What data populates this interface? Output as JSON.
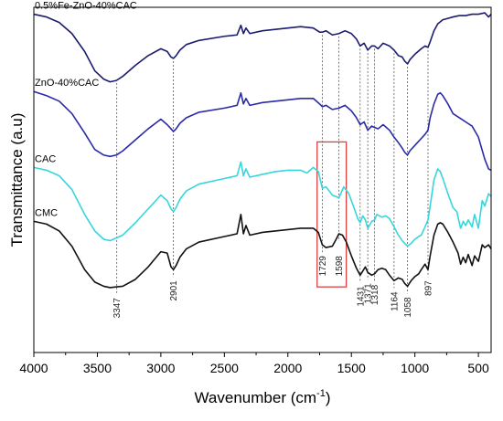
{
  "chart_data": {
    "type": "line",
    "xlabel": "Wavenumber (cm",
    "xlabel_sup": "-1",
    "xlabel_close": ")",
    "ylabel": "Transmittance (a.u)",
    "xlim": [
      4000,
      400
    ],
    "x_reversed": true,
    "y_scale": "arbitrary offset (a.u), 0 = bottom of frame, 100 = top",
    "ylim": [
      0,
      100
    ],
    "x_ticks": [
      4000,
      3500,
      3000,
      2500,
      2000,
      1500,
      1000,
      500
    ],
    "grid": false,
    "legend": "labels printed above each curve",
    "series": [
      {
        "name": "0.5%Fe-ZnO-40%CAC",
        "color": "#1c1c6e",
        "points": [
          [
            4000,
            98.0
          ],
          [
            3900,
            97.2
          ],
          [
            3800,
            95.6
          ],
          [
            3700,
            92.4
          ],
          [
            3600,
            87.2
          ],
          [
            3520,
            81.6
          ],
          [
            3450,
            79.2
          ],
          [
            3400,
            78.4
          ],
          [
            3350,
            78.8
          ],
          [
            3300,
            80.0
          ],
          [
            3200,
            83.2
          ],
          [
            3100,
            86.0
          ],
          [
            3000,
            88.0
          ],
          [
            2950,
            87.2
          ],
          [
            2920,
            85.6
          ],
          [
            2901,
            85.2
          ],
          [
            2880,
            86.0
          ],
          [
            2850,
            87.6
          ],
          [
            2800,
            89.2
          ],
          [
            2700,
            90.4
          ],
          [
            2500,
            91.6
          ],
          [
            2400,
            92.0
          ],
          [
            2370,
            94.8
          ],
          [
            2350,
            92.4
          ],
          [
            2330,
            94.0
          ],
          [
            2300,
            92.4
          ],
          [
            2200,
            93.2
          ],
          [
            2100,
            93.6
          ],
          [
            2000,
            94.0
          ],
          [
            1900,
            94.4
          ],
          [
            1800,
            94.0
          ],
          [
            1750,
            92.8
          ],
          [
            1729,
            92.8
          ],
          [
            1700,
            93.2
          ],
          [
            1650,
            92.0
          ],
          [
            1598,
            92.4
          ],
          [
            1550,
            93.2
          ],
          [
            1500,
            92.4
          ],
          [
            1460,
            90.8
          ],
          [
            1431,
            88.8
          ],
          [
            1400,
            89.6
          ],
          [
            1371,
            87.6
          ],
          [
            1340,
            88.8
          ],
          [
            1318,
            88.8
          ],
          [
            1290,
            88.0
          ],
          [
            1250,
            89.6
          ],
          [
            1200,
            88.8
          ],
          [
            1164,
            87.6
          ],
          [
            1130,
            86.0
          ],
          [
            1100,
            85.6
          ],
          [
            1080,
            84.4
          ],
          [
            1058,
            83.6
          ],
          [
            1040,
            84.8
          ],
          [
            1000,
            86.4
          ],
          [
            950,
            88.0
          ],
          [
            920,
            88.8
          ],
          [
            897,
            88.4
          ],
          [
            880,
            90.0
          ],
          [
            850,
            93.2
          ],
          [
            820,
            95.2
          ],
          [
            780,
            96.4
          ],
          [
            740,
            96.8
          ],
          [
            700,
            97.2
          ],
          [
            650,
            97.6
          ],
          [
            600,
            97.6
          ],
          [
            550,
            98.0
          ],
          [
            500,
            98.0
          ],
          [
            450,
            98.4
          ],
          [
            420,
            97.2
          ],
          [
            400,
            98.0
          ]
        ]
      },
      {
        "name": "ZnO-40%CAC",
        "color": "#2a2aa8",
        "points": [
          [
            4000,
            75.6
          ],
          [
            3900,
            74.4
          ],
          [
            3800,
            72.8
          ],
          [
            3700,
            69.2
          ],
          [
            3600,
            63.6
          ],
          [
            3520,
            58.8
          ],
          [
            3450,
            57.2
          ],
          [
            3400,
            56.8
          ],
          [
            3350,
            57.2
          ],
          [
            3300,
            58.4
          ],
          [
            3200,
            61.6
          ],
          [
            3100,
            64.8
          ],
          [
            3000,
            67.6
          ],
          [
            2950,
            66.0
          ],
          [
            2920,
            64.8
          ],
          [
            2901,
            64.0
          ],
          [
            2880,
            64.8
          ],
          [
            2850,
            66.4
          ],
          [
            2800,
            68.0
          ],
          [
            2700,
            69.6
          ],
          [
            2500,
            70.8
          ],
          [
            2400,
            71.6
          ],
          [
            2370,
            75.2
          ],
          [
            2350,
            72.0
          ],
          [
            2330,
            73.6
          ],
          [
            2300,
            71.6
          ],
          [
            2200,
            72.4
          ],
          [
            2100,
            72.8
          ],
          [
            2000,
            73.2
          ],
          [
            1900,
            73.6
          ],
          [
            1800,
            73.6
          ],
          [
            1750,
            72.0
          ],
          [
            1729,
            71.2
          ],
          [
            1700,
            71.6
          ],
          [
            1650,
            70.4
          ],
          [
            1598,
            70.8
          ],
          [
            1550,
            71.6
          ],
          [
            1500,
            70.0
          ],
          [
            1460,
            68.0
          ],
          [
            1431,
            66.0
          ],
          [
            1400,
            66.8
          ],
          [
            1371,
            64.4
          ],
          [
            1340,
            65.6
          ],
          [
            1318,
            65.2
          ],
          [
            1290,
            64.8
          ],
          [
            1250,
            66.0
          ],
          [
            1200,
            64.4
          ],
          [
            1164,
            62.4
          ],
          [
            1130,
            60.8
          ],
          [
            1100,
            59.2
          ],
          [
            1080,
            58.0
          ],
          [
            1058,
            57.2
          ],
          [
            1040,
            58.4
          ],
          [
            1000,
            60.0
          ],
          [
            950,
            62.0
          ],
          [
            920,
            63.2
          ],
          [
            897,
            64.4
          ],
          [
            880,
            68.0
          ],
          [
            850,
            72.0
          ],
          [
            820,
            74.8
          ],
          [
            800,
            75.2
          ],
          [
            780,
            74.4
          ],
          [
            740,
            72.0
          ],
          [
            700,
            69.2
          ],
          [
            650,
            68.0
          ],
          [
            600,
            66.8
          ],
          [
            550,
            65.6
          ],
          [
            500,
            62.4
          ],
          [
            450,
            56.0
          ],
          [
            420,
            53.2
          ],
          [
            400,
            52.8
          ]
        ]
      },
      {
        "name": "CAC",
        "color": "#35d6dc",
        "points": [
          [
            4000,
            53.6
          ],
          [
            3900,
            52.8
          ],
          [
            3800,
            51.2
          ],
          [
            3700,
            47.2
          ],
          [
            3600,
            40.0
          ],
          [
            3520,
            35.2
          ],
          [
            3450,
            32.8
          ],
          [
            3400,
            32.4
          ],
          [
            3300,
            34.0
          ],
          [
            3200,
            37.6
          ],
          [
            3100,
            41.6
          ],
          [
            3000,
            45.6
          ],
          [
            2950,
            44.0
          ],
          [
            2920,
            41.6
          ],
          [
            2901,
            40.8
          ],
          [
            2880,
            42.0
          ],
          [
            2850,
            44.4
          ],
          [
            2800,
            46.8
          ],
          [
            2700,
            48.8
          ],
          [
            2500,
            50.4
          ],
          [
            2400,
            51.2
          ],
          [
            2370,
            55.2
          ],
          [
            2350,
            51.2
          ],
          [
            2330,
            53.2
          ],
          [
            2300,
            50.8
          ],
          [
            2200,
            51.6
          ],
          [
            2100,
            52.4
          ],
          [
            2000,
            52.8
          ],
          [
            1900,
            52.8
          ],
          [
            1850,
            52.0
          ],
          [
            1800,
            53.6
          ],
          [
            1760,
            52.4
          ],
          [
            1729,
            47.6
          ],
          [
            1700,
            48.0
          ],
          [
            1650,
            45.6
          ],
          [
            1598,
            44.8
          ],
          [
            1560,
            48.0
          ],
          [
            1520,
            46.0
          ],
          [
            1480,
            42.0
          ],
          [
            1450,
            38.8
          ],
          [
            1431,
            37.6
          ],
          [
            1410,
            39.6
          ],
          [
            1390,
            38.4
          ],
          [
            1371,
            36.0
          ],
          [
            1340,
            38.0
          ],
          [
            1318,
            38.4
          ],
          [
            1300,
            40.0
          ],
          [
            1260,
            39.2
          ],
          [
            1230,
            39.6
          ],
          [
            1200,
            38.8
          ],
          [
            1164,
            36.4
          ],
          [
            1130,
            34.0
          ],
          [
            1100,
            32.4
          ],
          [
            1080,
            31.6
          ],
          [
            1058,
            30.8
          ],
          [
            1030,
            31.6
          ],
          [
            1000,
            32.8
          ],
          [
            970,
            33.6
          ],
          [
            950,
            34.0
          ],
          [
            920,
            36.4
          ],
          [
            897,
            38.4
          ],
          [
            880,
            42.4
          ],
          [
            850,
            50.0
          ],
          [
            820,
            53.2
          ],
          [
            800,
            52.4
          ],
          [
            780,
            50.4
          ],
          [
            740,
            46.0
          ],
          [
            700,
            42.0
          ],
          [
            670,
            40.8
          ],
          [
            640,
            36.0
          ],
          [
            620,
            38.0
          ],
          [
            600,
            36.8
          ],
          [
            580,
            38.4
          ],
          [
            550,
            36.4
          ],
          [
            530,
            40.0
          ],
          [
            500,
            36.0
          ],
          [
            470,
            44.0
          ],
          [
            450,
            42.4
          ],
          [
            420,
            46.0
          ],
          [
            400,
            45.2
          ]
        ]
      },
      {
        "name": "CMC",
        "color": "#111111",
        "points": [
          [
            4000,
            38.0
          ],
          [
            3900,
            37.2
          ],
          [
            3800,
            35.2
          ],
          [
            3700,
            30.8
          ],
          [
            3600,
            24.0
          ],
          [
            3520,
            20.4
          ],
          [
            3450,
            19.2
          ],
          [
            3400,
            18.8
          ],
          [
            3300,
            19.2
          ],
          [
            3200,
            21.2
          ],
          [
            3100,
            24.8
          ],
          [
            3000,
            29.2
          ],
          [
            2950,
            28.8
          ],
          [
            2920,
            24.8
          ],
          [
            2901,
            24.0
          ],
          [
            2880,
            25.2
          ],
          [
            2850,
            27.6
          ],
          [
            2800,
            30.0
          ],
          [
            2700,
            32.0
          ],
          [
            2500,
            33.6
          ],
          [
            2400,
            34.4
          ],
          [
            2370,
            40.0
          ],
          [
            2350,
            34.4
          ],
          [
            2330,
            36.8
          ],
          [
            2300,
            34.0
          ],
          [
            2200,
            34.8
          ],
          [
            2100,
            35.2
          ],
          [
            2000,
            35.6
          ],
          [
            1900,
            36.0
          ],
          [
            1800,
            36.0
          ],
          [
            1760,
            34.8
          ],
          [
            1729,
            31.2
          ],
          [
            1700,
            30.4
          ],
          [
            1650,
            30.8
          ],
          [
            1620,
            32.8
          ],
          [
            1598,
            34.4
          ],
          [
            1570,
            34.0
          ],
          [
            1540,
            32.0
          ],
          [
            1500,
            28.0
          ],
          [
            1460,
            24.4
          ],
          [
            1431,
            22.4
          ],
          [
            1410,
            23.6
          ],
          [
            1390,
            24.8
          ],
          [
            1371,
            23.2
          ],
          [
            1340,
            22.4
          ],
          [
            1318,
            22.8
          ],
          [
            1290,
            24.0
          ],
          [
            1260,
            24.4
          ],
          [
            1230,
            24.0
          ],
          [
            1200,
            22.4
          ],
          [
            1164,
            20.8
          ],
          [
            1130,
            21.6
          ],
          [
            1100,
            21.2
          ],
          [
            1080,
            20.0
          ],
          [
            1058,
            19.2
          ],
          [
            1030,
            20.8
          ],
          [
            1000,
            22.0
          ],
          [
            970,
            22.8
          ],
          [
            950,
            24.0
          ],
          [
            920,
            25.6
          ],
          [
            897,
            24.0
          ],
          [
            880,
            28.0
          ],
          [
            850,
            34.0
          ],
          [
            820,
            37.2
          ],
          [
            800,
            37.6
          ],
          [
            780,
            37.2
          ],
          [
            740,
            34.8
          ],
          [
            700,
            32.0
          ],
          [
            660,
            28.8
          ],
          [
            640,
            25.6
          ],
          [
            620,
            27.6
          ],
          [
            600,
            26.0
          ],
          [
            580,
            28.4
          ],
          [
            550,
            25.2
          ],
          [
            530,
            28.0
          ],
          [
            500,
            26.4
          ],
          [
            470,
            31.2
          ],
          [
            450,
            30.4
          ],
          [
            420,
            31.2
          ],
          [
            400,
            30.0
          ]
        ]
      }
    ],
    "reference_lines": [
      {
        "x": 3347,
        "label": "3347"
      },
      {
        "x": 2901,
        "label": "2901"
      },
      {
        "x": 1729,
        "label": "1729"
      },
      {
        "x": 1598,
        "label": "1598"
      },
      {
        "x": 1431,
        "label": "1431"
      },
      {
        "x": 1371,
        "label": "1371"
      },
      {
        "x": 1318,
        "label": "1318"
      },
      {
        "x": 1164,
        "label": "1164"
      },
      {
        "x": 1058,
        "label": "1058"
      },
      {
        "x": 897,
        "label": "897"
      }
    ],
    "highlight_box": {
      "x_range": [
        1770,
        1540
      ],
      "y_range": [
        19,
        61
      ],
      "color": "#e04040"
    },
    "colors": {
      "axis": "#000000",
      "reference_line": "#555555"
    }
  }
}
